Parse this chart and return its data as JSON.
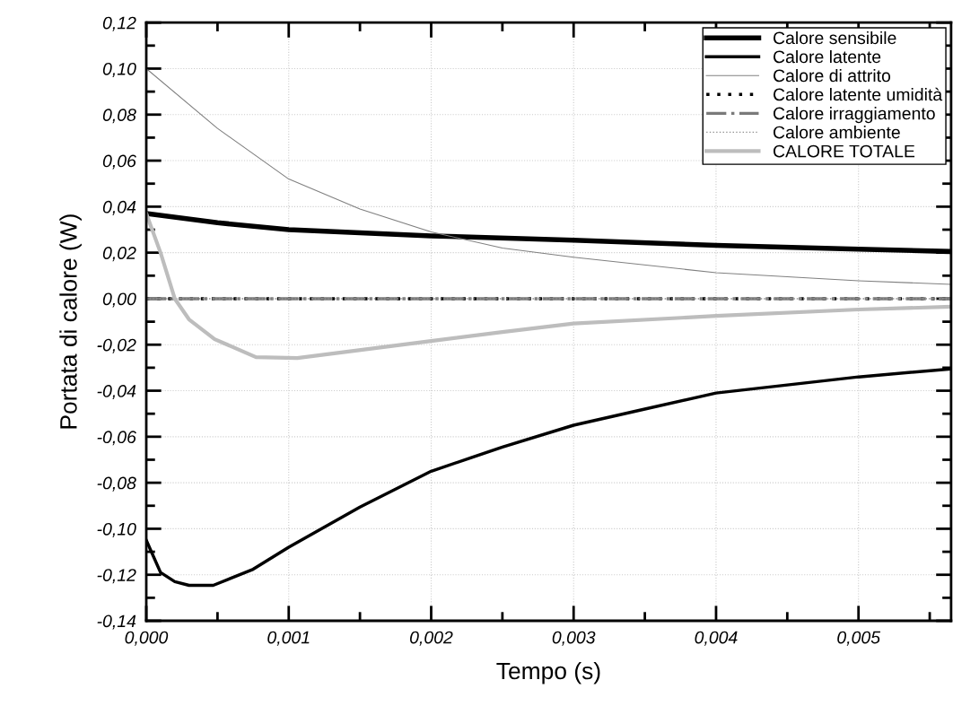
{
  "chart_data": {
    "type": "line",
    "xlabel": "Tempo (s)",
    "ylabel": "Portata di calore (W)",
    "xlim": [
      0,
      0.00565
    ],
    "ylim": [
      -0.14,
      0.12
    ],
    "xticks": [
      {
        "value": 0,
        "label": "0,000"
      },
      {
        "value": 0.001,
        "label": "0,001"
      },
      {
        "value": 0.002,
        "label": "0,002"
      },
      {
        "value": 0.003,
        "label": "0,003"
      },
      {
        "value": 0.004,
        "label": "0,004"
      },
      {
        "value": 0.005,
        "label": "0,005"
      }
    ],
    "yticks": [
      {
        "value": -0.14,
        "label": "-0,14"
      },
      {
        "value": -0.12,
        "label": "-0,12"
      },
      {
        "value": -0.1,
        "label": "-0,10"
      },
      {
        "value": -0.08,
        "label": "-0,08"
      },
      {
        "value": -0.06,
        "label": "-0,06"
      },
      {
        "value": -0.04,
        "label": "-0,04"
      },
      {
        "value": -0.02,
        "label": "-0,02"
      },
      {
        "value": 0,
        "label": "0,00"
      },
      {
        "value": 0.02,
        "label": "0,02"
      },
      {
        "value": 0.04,
        "label": "0,04"
      },
      {
        "value": 0.06,
        "label": "0,06"
      },
      {
        "value": 0.08,
        "label": "0,08"
      },
      {
        "value": 0.1,
        "label": "0,10"
      },
      {
        "value": 0.12,
        "label": "0,12"
      }
    ],
    "grid": true,
    "legend": "top right",
    "series": [
      {
        "name": "Calore sensibile",
        "color": "#000000",
        "line_style": "solid",
        "x": [
          0,
          0.0005,
          0.001,
          0.002,
          0.003,
          0.004,
          0.005,
          0.00565
        ],
        "values": [
          0.037,
          0.033,
          0.03,
          0.0273,
          0.0254,
          0.0232,
          0.0215,
          0.0205
        ]
      },
      {
        "name": "Calore latente",
        "color": "#000000",
        "line_style": "solid",
        "x": [
          0,
          0.0001,
          0.0002,
          0.0003,
          0.00047,
          0.00075,
          0.001,
          0.0015,
          0.002,
          0.0025,
          0.003,
          0.0035,
          0.004,
          0.005,
          0.00565
        ],
        "values": [
          -0.105,
          -0.119,
          -0.123,
          -0.1246,
          -0.1246,
          -0.1176,
          -0.108,
          -0.0906,
          -0.075,
          -0.0645,
          -0.055,
          -0.048,
          -0.041,
          -0.034,
          -0.0305
        ]
      },
      {
        "name": "Calore di attrito",
        "color": "#808080",
        "line_style": "solid",
        "x": [
          0,
          0.0005,
          0.001,
          0.0015,
          0.002,
          0.0025,
          0.003,
          0.004,
          0.005,
          0.00565
        ],
        "values": [
          0.1,
          0.074,
          0.052,
          0.039,
          0.029,
          0.022,
          0.018,
          0.0113,
          0.0078,
          0.0062
        ]
      },
      {
        "name": "Calore latente umidità",
        "color": "#000000",
        "line_style": "dotted",
        "x": [
          0,
          0.00565
        ],
        "values": [
          0,
          0
        ]
      },
      {
        "name": "Calore irraggiamento",
        "color": "#7a7a7a",
        "line_style": "dashdot",
        "x": [
          0,
          0.00565
        ],
        "values": [
          0,
          0
        ]
      },
      {
        "name": "Calore ambiente",
        "color": "#909090",
        "line_style": "dotted",
        "x": [
          0,
          0.00565
        ],
        "values": [
          0,
          0
        ]
      },
      {
        "name": "CALORE TOTALE",
        "color": "#bdbdbd",
        "line_style": "solid",
        "x": [
          0,
          0.0001,
          0.0002,
          0.0003,
          0.00048,
          0.00077,
          0.00106,
          0.002,
          0.0025,
          0.003,
          0.004,
          0.005,
          0.00565
        ],
        "values": [
          0.037,
          0.02,
          0.0,
          -0.009,
          -0.0176,
          -0.0254,
          -0.0258,
          -0.0184,
          -0.0145,
          -0.0108,
          -0.0075,
          -0.0047,
          -0.0035
        ]
      }
    ]
  }
}
